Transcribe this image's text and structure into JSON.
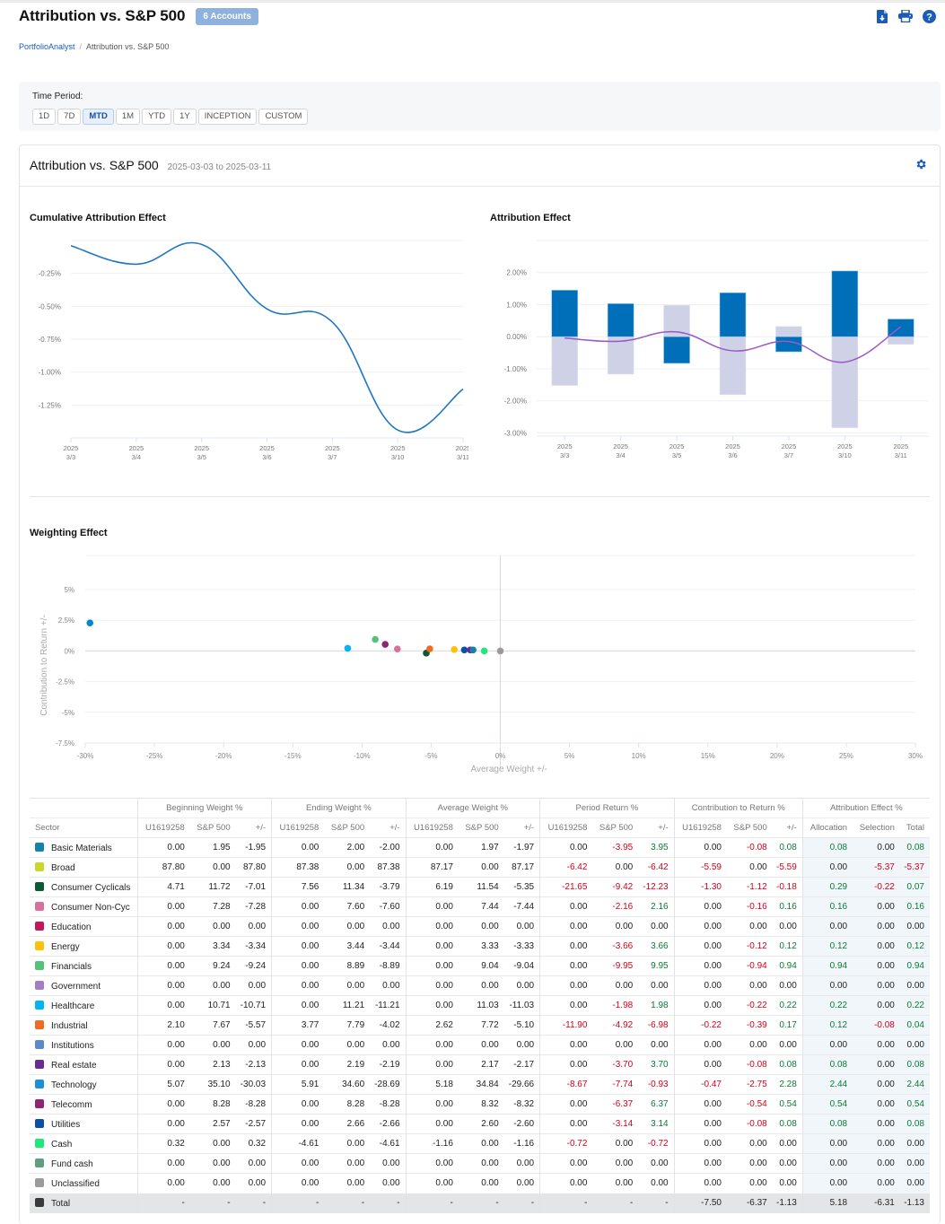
{
  "header": {
    "title": "Attribution vs. S&P 500",
    "accounts_badge": "6 Accounts",
    "icons": [
      "download-icon",
      "print-icon",
      "help-icon"
    ]
  },
  "breadcrumb": {
    "root": "PortfolioAnalyst",
    "current": "Attribution vs. S&P 500"
  },
  "time_period": {
    "label": "Time Period:",
    "options": [
      "1D",
      "7D",
      "MTD",
      "1M",
      "YTD",
      "1Y",
      "INCEPTION",
      "CUSTOM"
    ],
    "selected": "MTD"
  },
  "card": {
    "title": "Attribution vs. S&P 500",
    "date_range": "2025-03-03 to 2025-03-11"
  },
  "colors": {
    "accent": "#1b5cb8",
    "line_blue": "#1f77c4",
    "bar_blue": "#006fba",
    "bar_lavender": "#cfd1e6",
    "line_purple": "#9b59c8",
    "negative": "#d0021b",
    "positive": "#0a7a35"
  },
  "chart_data": [
    {
      "id": "cumulative",
      "type": "line",
      "title": "Cumulative Attribution Effect",
      "x": [
        "2025\n3/3",
        "2025\n3/4",
        "2025\n3/5",
        "2025\n3/6",
        "2025\n3/7",
        "2025\n3/10",
        "2025\n3/11"
      ],
      "x_ticks": [
        [
          "2025",
          "3/3"
        ],
        [
          "2025",
          "3/4"
        ],
        [
          "2025",
          "3/5"
        ],
        [
          "2025",
          "3/6"
        ],
        [
          "2025",
          "3/7"
        ],
        [
          "2025",
          "3/10"
        ],
        [
          "2025",
          "3/11"
        ]
      ],
      "values": [
        -0.04,
        -0.18,
        -0.03,
        -0.52,
        -0.62,
        -1.44,
        -1.13
      ],
      "y_ticks": [
        -0.25,
        -0.5,
        -0.75,
        -1.0,
        -1.25
      ],
      "y_tick_labels": [
        "-0.25%",
        "-0.50%",
        "-0.75%",
        "-1.00%",
        "-1.25%"
      ],
      "ylim": [
        -1.5,
        0.0
      ],
      "grid": true
    },
    {
      "id": "attribution",
      "type": "bar",
      "title": "Attribution Effect",
      "x_ticks": [
        [
          "2025",
          "3/3"
        ],
        [
          "2025",
          "3/4"
        ],
        [
          "2025",
          "3/5"
        ],
        [
          "2025",
          "3/6"
        ],
        [
          "2025",
          "3/7"
        ],
        [
          "2025",
          "3/10"
        ],
        [
          "2025",
          "3/11"
        ]
      ],
      "series": [
        {
          "name": "Allocation",
          "color": "#006fba",
          "values": [
            1.45,
            1.03,
            -0.83,
            1.37,
            -0.47,
            2.05,
            0.55
          ]
        },
        {
          "name": "Selection",
          "color": "#cfd1e6",
          "values": [
            -1.52,
            -1.17,
            0.98,
            -1.81,
            0.32,
            -2.84,
            -0.24
          ]
        },
        {
          "name": "Total",
          "type": "line",
          "color": "#9b59c8",
          "values": [
            -0.04,
            -0.14,
            0.15,
            -0.44,
            -0.15,
            -0.79,
            0.31
          ]
        }
      ],
      "y_ticks": [
        2,
        1,
        0,
        -1,
        -2,
        -3
      ],
      "y_tick_labels": [
        "2.00%",
        "1.00%",
        "0.00%",
        "-1.00%",
        "-2.00%",
        "-3.00%"
      ],
      "ylim": [
        -3.1,
        3.0
      ],
      "grid": true
    },
    {
      "id": "weighting",
      "type": "scatter",
      "title": "Weighting Effect",
      "xlabel": "Average Weight +/-",
      "ylabel": "Contribution to Return +/-",
      "xlim": [
        -30,
        30
      ],
      "ylim": [
        -7.5,
        7.5
      ],
      "x_ticks": [
        -30,
        -25,
        -20,
        -15,
        -10,
        -5,
        0,
        5,
        10,
        15,
        20,
        25,
        30
      ],
      "x_tick_labels": [
        "-30%",
        "-25%",
        "-20%",
        "-15%",
        "-10%",
        "-5%",
        "0%",
        "5%",
        "10%",
        "15%",
        "20%",
        "25%",
        "30%"
      ],
      "y_ticks": [
        5,
        2.5,
        0,
        -2.5,
        -5,
        -7.5
      ],
      "y_tick_labels": [
        "5%",
        "2.5%",
        "0%",
        "-2.5%",
        "-5%",
        "-7.5%"
      ],
      "points": [
        {
          "sector": "Technology",
          "x": -29.66,
          "y": 2.28,
          "color": "#0288d1"
        },
        {
          "sector": "Healthcare",
          "x": -11.03,
          "y": 0.22,
          "color": "#03b4f4"
        },
        {
          "sector": "Financials",
          "x": -9.04,
          "y": 0.94,
          "color": "#56c17c"
        },
        {
          "sector": "Telecomm",
          "x": -8.32,
          "y": 0.54,
          "color": "#8e2472"
        },
        {
          "sector": "Consumer Non-Cyc",
          "x": -7.44,
          "y": 0.16,
          "color": "#d8729a"
        },
        {
          "sector": "Consumer Cyclicals",
          "x": -5.35,
          "y": -0.18,
          "color": "#0b5a32"
        },
        {
          "sector": "Industrial",
          "x": -5.1,
          "y": 0.17,
          "color": "#f26a21"
        },
        {
          "sector": "Energy",
          "x": -3.33,
          "y": 0.12,
          "color": "#ffc107"
        },
        {
          "sector": "Utilities",
          "x": -2.6,
          "y": 0.08,
          "color": "#0d4fa8"
        },
        {
          "sector": "Real estate",
          "x": -2.17,
          "y": 0.08,
          "color": "#6a2c91"
        },
        {
          "sector": "Basic Materials",
          "x": -1.97,
          "y": 0.08,
          "color": "#1582a8"
        },
        {
          "sector": "Cash",
          "x": -1.16,
          "y": 0.0,
          "color": "#1de87a"
        },
        {
          "sector": "Unclassified",
          "x": 0.0,
          "y": 0.0,
          "color": "#9b9b9b"
        }
      ]
    }
  ],
  "table": {
    "groups": [
      "Beginning Weight %",
      "Ending Weight %",
      "Average Weight %",
      "Period Return %",
      "Contribution to Return %",
      "Attribution Effect %"
    ],
    "subheaders": [
      "Sector",
      "U1619258",
      "S&P 500",
      "+/-",
      "U1619258",
      "S&P 500",
      "+/-",
      "U1619258",
      "S&P 500",
      "+/-",
      "U1619258",
      "S&P 500",
      "+/-",
      "U1619258",
      "S&P 500",
      "+/-",
      "Allocation",
      "Selection",
      "Total"
    ],
    "rows": [
      {
        "sector": "Basic Materials",
        "color": "#1582a8",
        "values": [
          "0.00",
          "1.95",
          "-1.95",
          "0.00",
          "2.00",
          "-2.00",
          "0.00",
          "1.97",
          "-1.97",
          "0.00",
          "-3.95",
          "3.95",
          "0.00",
          "-0.08",
          "0.08",
          "0.08",
          "0.00",
          "0.08"
        ]
      },
      {
        "sector": "Broad",
        "color": "#c9d82a",
        "values": [
          "87.80",
          "0.00",
          "87.80",
          "87.38",
          "0.00",
          "87.38",
          "87.17",
          "0.00",
          "87.17",
          "-6.42",
          "0.00",
          "-6.42",
          "-5.59",
          "0.00",
          "-5.59",
          "0.00",
          "-5.37",
          "-5.37"
        ]
      },
      {
        "sector": "Consumer Cyclicals",
        "color": "#0b5a32",
        "values": [
          "4.71",
          "11.72",
          "-7.01",
          "7.56",
          "11.34",
          "-3.79",
          "6.19",
          "11.54",
          "-5.35",
          "-21.65",
          "-9.42",
          "-12.23",
          "-1.30",
          "-1.12",
          "-0.18",
          "0.29",
          "-0.22",
          "0.07"
        ]
      },
      {
        "sector": "Consumer Non-Cyc",
        "color": "#d8729a",
        "values": [
          "0.00",
          "7.28",
          "-7.28",
          "0.00",
          "7.60",
          "-7.60",
          "0.00",
          "7.44",
          "-7.44",
          "0.00",
          "-2.16",
          "2.16",
          "0.00",
          "-0.16",
          "0.16",
          "0.16",
          "0.00",
          "0.16"
        ]
      },
      {
        "sector": "Education",
        "color": "#c2185b",
        "values": [
          "0.00",
          "0.00",
          "0.00",
          "0.00",
          "0.00",
          "0.00",
          "0.00",
          "0.00",
          "0.00",
          "0.00",
          "0.00",
          "0.00",
          "0.00",
          "0.00",
          "0.00",
          "0.00",
          "0.00",
          "0.00"
        ]
      },
      {
        "sector": "Energy",
        "color": "#ffc107",
        "values": [
          "0.00",
          "3.34",
          "-3.34",
          "0.00",
          "3.44",
          "-3.44",
          "0.00",
          "3.33",
          "-3.33",
          "0.00",
          "-3.66",
          "3.66",
          "0.00",
          "-0.12",
          "0.12",
          "0.12",
          "0.00",
          "0.12"
        ]
      },
      {
        "sector": "Financials",
        "color": "#56c17c",
        "values": [
          "0.00",
          "9.24",
          "-9.24",
          "0.00",
          "8.89",
          "-8.89",
          "0.00",
          "9.04",
          "-9.04",
          "0.00",
          "-9.95",
          "9.95",
          "0.00",
          "-0.94",
          "0.94",
          "0.94",
          "0.00",
          "0.94"
        ]
      },
      {
        "sector": "Government",
        "color": "#a57cc6",
        "values": [
          "0.00",
          "0.00",
          "0.00",
          "0.00",
          "0.00",
          "0.00",
          "0.00",
          "0.00",
          "0.00",
          "0.00",
          "0.00",
          "0.00",
          "0.00",
          "0.00",
          "0.00",
          "0.00",
          "0.00",
          "0.00"
        ]
      },
      {
        "sector": "Healthcare",
        "color": "#03b4f4",
        "values": [
          "0.00",
          "10.71",
          "-10.71",
          "0.00",
          "11.21",
          "-11.21",
          "0.00",
          "11.03",
          "-11.03",
          "0.00",
          "-1.98",
          "1.98",
          "0.00",
          "-0.22",
          "0.22",
          "0.22",
          "0.00",
          "0.22"
        ]
      },
      {
        "sector": "Industrial",
        "color": "#f26a21",
        "values": [
          "2.10",
          "7.67",
          "-5.57",
          "3.77",
          "7.79",
          "-4.02",
          "2.62",
          "7.72",
          "-5.10",
          "-11.90",
          "-4.92",
          "-6.98",
          "-0.22",
          "-0.39",
          "0.17",
          "0.12",
          "-0.08",
          "0.04"
        ]
      },
      {
        "sector": "Institutions",
        "color": "#5b8ac7",
        "values": [
          "0.00",
          "0.00",
          "0.00",
          "0.00",
          "0.00",
          "0.00",
          "0.00",
          "0.00",
          "0.00",
          "0.00",
          "0.00",
          "0.00",
          "0.00",
          "0.00",
          "0.00",
          "0.00",
          "0.00",
          "0.00"
        ]
      },
      {
        "sector": "Real estate",
        "color": "#6a2c91",
        "values": [
          "0.00",
          "2.13",
          "-2.13",
          "0.00",
          "2.19",
          "-2.19",
          "0.00",
          "2.17",
          "-2.17",
          "0.00",
          "-3.70",
          "3.70",
          "0.00",
          "-0.08",
          "0.08",
          "0.08",
          "0.00",
          "0.08"
        ]
      },
      {
        "sector": "Technology",
        "color": "#1e90d8",
        "values": [
          "5.07",
          "35.10",
          "-30.03",
          "5.91",
          "34.60",
          "-28.69",
          "5.18",
          "34.84",
          "-29.66",
          "-8.67",
          "-7.74",
          "-0.93",
          "-0.47",
          "-2.75",
          "2.28",
          "2.44",
          "0.00",
          "2.44"
        ]
      },
      {
        "sector": "Telecomm",
        "color": "#8e2472",
        "values": [
          "0.00",
          "8.28",
          "-8.28",
          "0.00",
          "8.28",
          "-8.28",
          "0.00",
          "8.32",
          "-8.32",
          "0.00",
          "-6.37",
          "6.37",
          "0.00",
          "-0.54",
          "0.54",
          "0.54",
          "0.00",
          "0.54"
        ]
      },
      {
        "sector": "Utilities",
        "color": "#0d4fa8",
        "values": [
          "0.00",
          "2.57",
          "-2.57",
          "0.00",
          "2.66",
          "-2.66",
          "0.00",
          "2.60",
          "-2.60",
          "0.00",
          "-3.14",
          "3.14",
          "0.00",
          "-0.08",
          "0.08",
          "0.08",
          "0.00",
          "0.08"
        ]
      },
      {
        "sector": "Cash",
        "color": "#1de87a",
        "values": [
          "0.32",
          "0.00",
          "0.32",
          "-4.61",
          "0.00",
          "-4.61",
          "-1.16",
          "0.00",
          "-1.16",
          "-0.72",
          "0.00",
          "-0.72",
          "0.00",
          "0.00",
          "0.00",
          "0.00",
          "0.00",
          "0.00"
        ]
      },
      {
        "sector": "Fund cash",
        "color": "#5f9f7f",
        "values": [
          "0.00",
          "0.00",
          "0.00",
          "0.00",
          "0.00",
          "0.00",
          "0.00",
          "0.00",
          "0.00",
          "0.00",
          "0.00",
          "0.00",
          "0.00",
          "0.00",
          "0.00",
          "0.00",
          "0.00",
          "0.00"
        ]
      },
      {
        "sector": "Unclassified",
        "color": "#9b9b9b",
        "values": [
          "0.00",
          "0.00",
          "0.00",
          "0.00",
          "0.00",
          "0.00",
          "0.00",
          "0.00",
          "0.00",
          "0.00",
          "0.00",
          "0.00",
          "0.00",
          "0.00",
          "0.00",
          "0.00",
          "0.00",
          "0.00"
        ]
      }
    ],
    "total": {
      "sector": "Total",
      "color": "#3a3a3a",
      "values": [
        "-",
        "-",
        "-",
        "-",
        "-",
        "-",
        "-",
        "-",
        "-",
        "-",
        "-",
        "-",
        "-7.50",
        "-6.37",
        "-1.13",
        "5.18",
        "-6.31",
        "-1.13"
      ]
    }
  }
}
